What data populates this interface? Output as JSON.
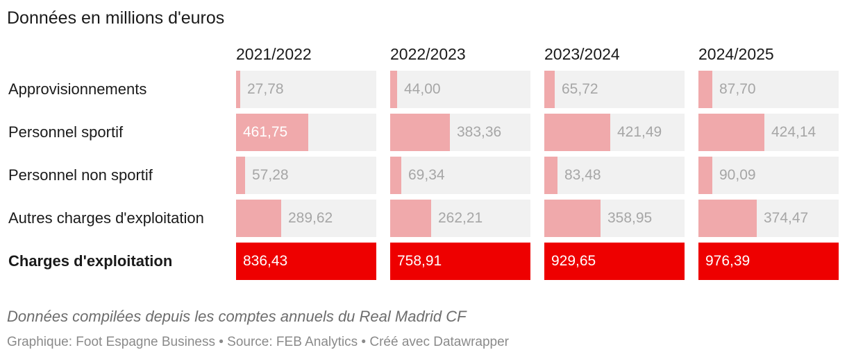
{
  "title": "Données en millions d'euros",
  "colors": {
    "light_bar": "#f0a9ab",
    "strong_bar": "#ee0000",
    "cell_bg": "#f1f1f1",
    "muted_text": "#a6a6a6"
  },
  "chart_data": {
    "type": "table",
    "title": "Données en millions d'euros",
    "columns": [
      "2021/2022",
      "2022/2023",
      "2023/2024",
      "2024/2025"
    ],
    "rows": [
      {
        "label": "Approvisionnements",
        "bold": false,
        "values": [
          27.78,
          44.0,
          65.72,
          87.7
        ],
        "labels": [
          "27,78",
          "44,00",
          "65,72",
          "87,70"
        ]
      },
      {
        "label": "Personnel sportif",
        "bold": false,
        "values": [
          461.75,
          383.36,
          421.49,
          424.14
        ],
        "labels": [
          "461,75",
          "383,36",
          "421,49",
          "424,14"
        ]
      },
      {
        "label": "Personnel non sportif",
        "bold": false,
        "values": [
          57.28,
          69.34,
          83.48,
          90.09
        ],
        "labels": [
          "57,28",
          "69,34",
          "83,48",
          "90,09"
        ]
      },
      {
        "label": "Autres charges d'exploitation",
        "bold": false,
        "values": [
          289.62,
          262.21,
          358.95,
          374.47
        ],
        "labels": [
          "289,62",
          "262,21",
          "358,95",
          "374,47"
        ]
      },
      {
        "label": "Charges d'exploitation",
        "bold": true,
        "values": [
          836.43,
          758.91,
          929.65,
          976.39
        ],
        "labels": [
          "836,43",
          "758,91",
          "929,65",
          "976,39"
        ]
      }
    ]
  },
  "footer": {
    "note": "Données compilées depuis les comptes annuels du Real Madrid CF",
    "credits": "Graphique: Foot Espagne Business • Source: FEB Analytics • Créé avec Datawrapper"
  }
}
